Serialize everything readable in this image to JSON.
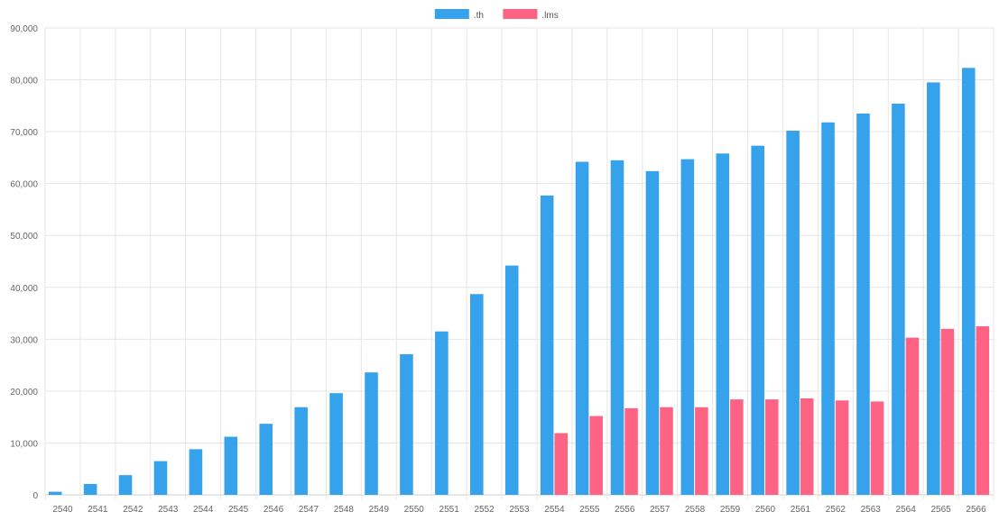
{
  "chart_data": {
    "type": "bar",
    "categories": [
      "2540",
      "2541",
      "2542",
      "2543",
      "2544",
      "2545",
      "2546",
      "2547",
      "2548",
      "2549",
      "2550",
      "2551",
      "2552",
      "2553",
      "2554",
      "2555",
      "2556",
      "2557",
      "2558",
      "2559",
      "2560",
      "2561",
      "2562",
      "2563",
      "2564",
      "2565",
      "2566"
    ],
    "series": [
      {
        "name": ".th",
        "color": "#36a2eb",
        "values": [
          600,
          2100,
          3800,
          6500,
          8800,
          11200,
          13700,
          16900,
          19600,
          23600,
          27100,
          31500,
          38700,
          44200,
          57700,
          64200,
          64500,
          62400,
          64700,
          65800,
          67300,
          70200,
          71800,
          73500,
          75400,
          79500,
          82300
        ]
      },
      {
        "name": ".lms",
        "color": "#ff6384",
        "values": [
          0,
          0,
          0,
          0,
          0,
          0,
          0,
          0,
          0,
          0,
          0,
          0,
          0,
          0,
          11900,
          15200,
          16700,
          16900,
          16900,
          18400,
          18400,
          18600,
          18200,
          18000,
          30300,
          32000,
          32500
        ]
      }
    ],
    "y_ticks": [
      "0",
      "10,000",
      "20,000",
      "30,000",
      "40,000",
      "50,000",
      "60,000",
      "70,000",
      "80,000",
      "90,000"
    ],
    "ylim": [
      0,
      90000
    ],
    "grid": true,
    "legend_position": "top-center"
  }
}
